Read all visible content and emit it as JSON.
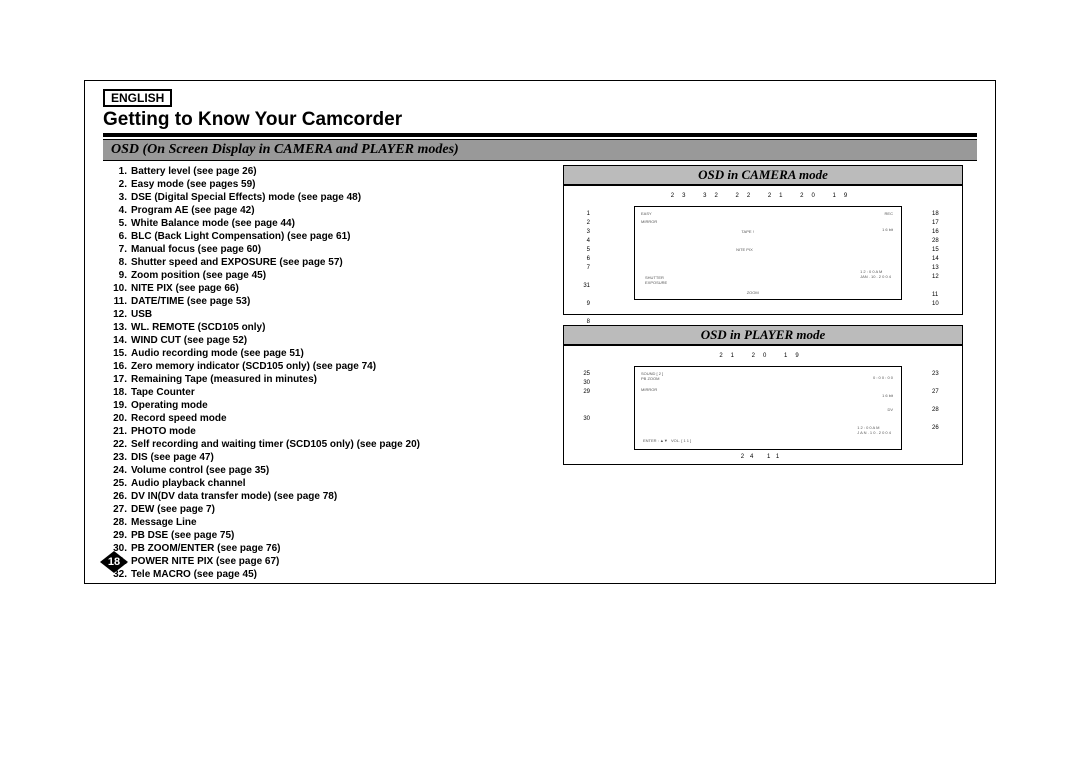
{
  "language_label": "ENGLISH",
  "main_title": "Getting to Know Your Camcorder",
  "section_heading": "OSD (On Screen Display in CAMERA and PLAYER modes)",
  "page_number": "18",
  "osd_items": [
    "Battery level (see page 26)",
    "Easy mode (see pages 59)",
    "DSE (Digital Special Effects) mode (see page 48)",
    "Program AE (see page 42)",
    "White Balance mode (see page 44)",
    "BLC (Back Light Compensation) (see page 61)",
    "Manual focus (see page 60)",
    "Shutter speed and EXPOSURE (see page 57)",
    "Zoom position (see page 45)",
    "NITE PIX (see page 66)",
    "DATE/TIME (see page 53)",
    "USB",
    "WL. REMOTE (SCD105 only)",
    "WIND CUT (see page 52)",
    "Audio recording mode (see page 51)",
    "Zero memory indicator (SCD105 only) (see page 74)",
    "Remaining Tape (measured in minutes)",
    "Tape Counter",
    "Operating mode",
    "Record speed mode",
    "PHOTO mode",
    "Self recording and waiting timer (SCD105 only) (see page 20)",
    "DIS (see page 47)",
    "Volume control (see page 35)",
    "Audio playback channel",
    "DV IN(DV data transfer mode) (see page 78)",
    "DEW (see page 7)",
    "Message Line",
    "PB DSE (see page 75)",
    "PB ZOOM/ENTER (see page 76)",
    "POWER NITE PIX (see page 67)",
    "Tele MACRO (see page 45)"
  ],
  "camera_diagram": {
    "title": "OSD in CAMERA mode",
    "top_callouts": "23 32 22 21  20  19",
    "left_callouts": [
      "1",
      "2",
      "3",
      "4",
      "5",
      "6",
      "7",
      " ",
      "31",
      " ",
      "9",
      " ",
      "8"
    ],
    "right_callouts": [
      "18",
      "17",
      "16",
      "28",
      "15",
      "14",
      "13",
      "12",
      " ",
      "11",
      "10"
    ],
    "bottom_callouts": ""
  },
  "player_diagram": {
    "title": "OSD in PLAYER mode",
    "top_callouts": "21 20     19",
    "left_callouts": [
      "25",
      "30",
      "29",
      " ",
      " ",
      "30"
    ],
    "right_callouts": [
      "23",
      " ",
      "27",
      " ",
      "28",
      " ",
      "26"
    ],
    "bottom_callouts": "24   11"
  }
}
